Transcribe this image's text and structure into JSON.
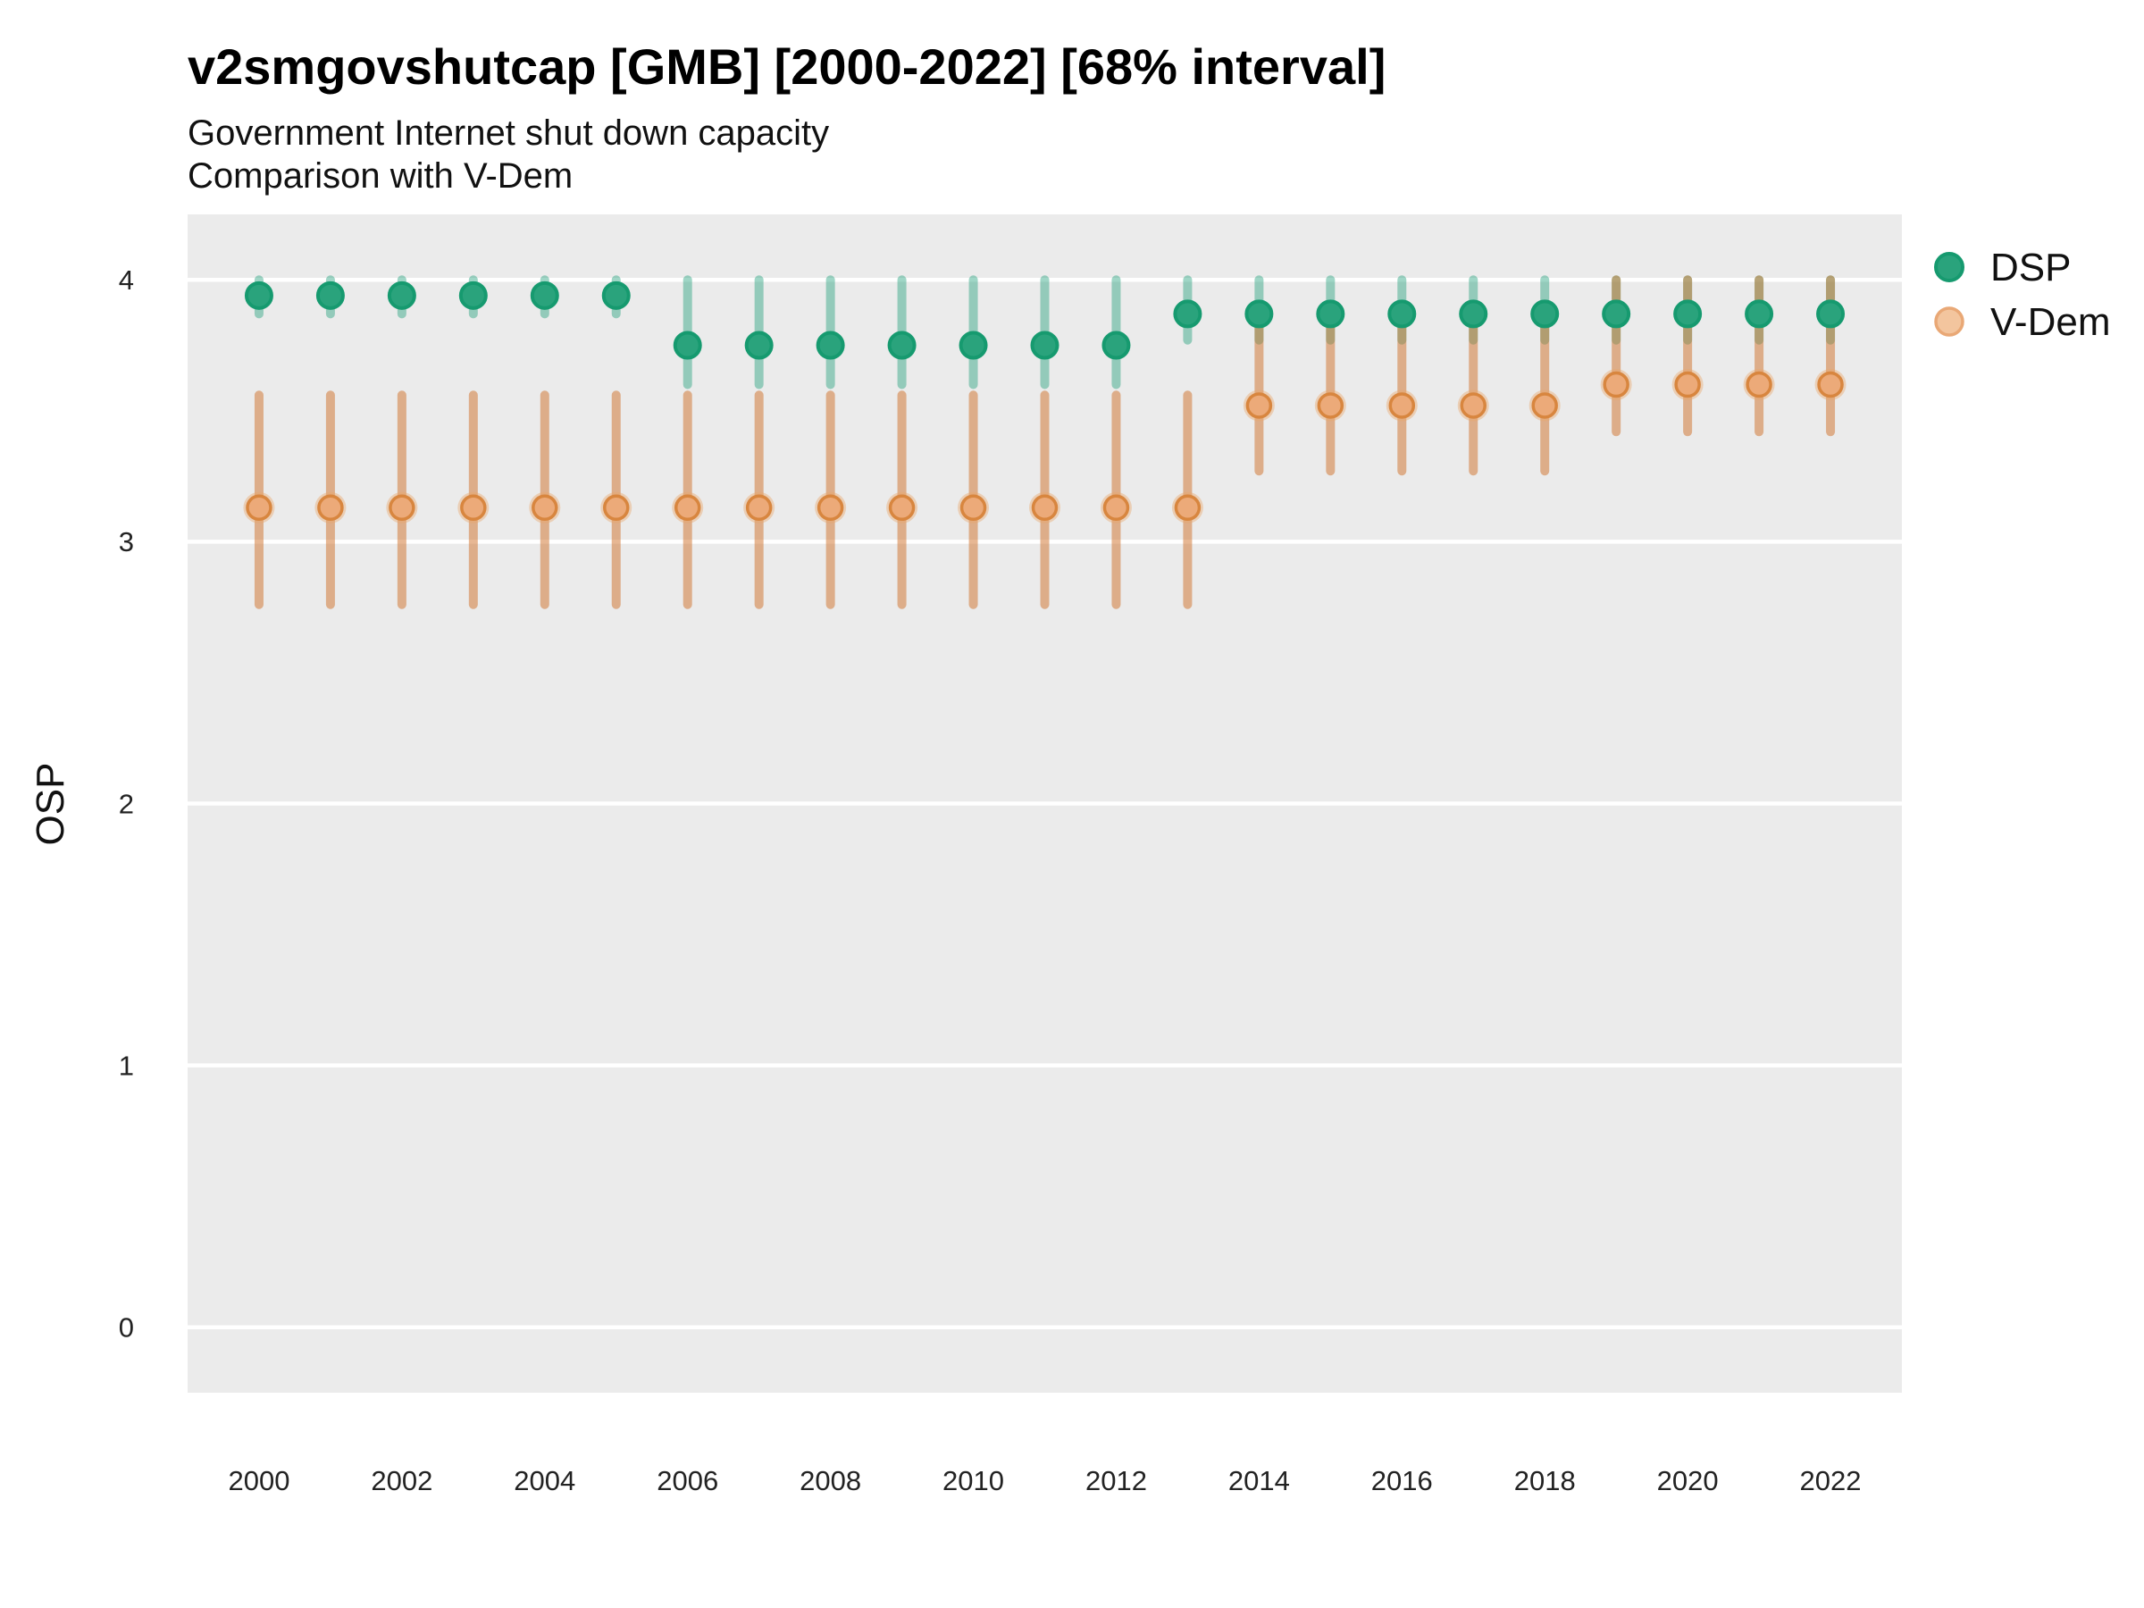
{
  "title": "v2smgovshutcap [GMB] [2000-2022] [68% interval]",
  "subtitle1": "Government Internet shut down capacity",
  "subtitle2": "Comparison with V-Dem",
  "ylabel": "OSP",
  "legend": {
    "entries": [
      {
        "label": "DSP",
        "swatch_fill": "#2aa37c",
        "swatch_stroke": "#169a6f"
      },
      {
        "label": "V-Dem",
        "swatch_fill": "#f3c59e",
        "swatch_stroke": "#e9a876"
      }
    ]
  },
  "colors": {
    "panel_background": "#ebebeb",
    "gridline": "#ffffff",
    "tick_label": "#222222",
    "dsp_point_fill": "#2aa37c",
    "dsp_point_stroke": "#169a6f",
    "dsp_interval": "rgba(27,158,119,0.42)",
    "vdem_point_fill": "#ecaa79",
    "vdem_point_stroke": "#d8863f",
    "vdem_halo": "rgba(233,167,107,0.42)",
    "vdem_interval": "rgba(207,111,40,0.5)"
  },
  "chart_data": {
    "type": "scatter",
    "subtype": "pointrange",
    "interval_level": "68%",
    "xlabel": "",
    "ylabel": "OSP",
    "xlim": [
      1999,
      2023
    ],
    "ylim": [
      -0.25,
      4.25
    ],
    "xticks": [
      2000,
      2002,
      2004,
      2006,
      2008,
      2010,
      2012,
      2014,
      2016,
      2018,
      2020,
      2022
    ],
    "yticks": [
      0,
      1,
      2,
      3,
      4
    ],
    "grid": "major-horizontal-only",
    "legend_position": "right-top",
    "series": [
      {
        "name": "DSP",
        "points": [
          {
            "x": 2000,
            "est": 3.94,
            "lo": 3.87,
            "hi": 4.0
          },
          {
            "x": 2001,
            "est": 3.94,
            "lo": 3.87,
            "hi": 4.0
          },
          {
            "x": 2002,
            "est": 3.94,
            "lo": 3.87,
            "hi": 4.0
          },
          {
            "x": 2003,
            "est": 3.94,
            "lo": 3.87,
            "hi": 4.0
          },
          {
            "x": 2004,
            "est": 3.94,
            "lo": 3.87,
            "hi": 4.0
          },
          {
            "x": 2005,
            "est": 3.94,
            "lo": 3.87,
            "hi": 4.0
          },
          {
            "x": 2006,
            "est": 3.75,
            "lo": 3.6,
            "hi": 4.0
          },
          {
            "x": 2007,
            "est": 3.75,
            "lo": 3.6,
            "hi": 4.0
          },
          {
            "x": 2008,
            "est": 3.75,
            "lo": 3.6,
            "hi": 4.0
          },
          {
            "x": 2009,
            "est": 3.75,
            "lo": 3.6,
            "hi": 4.0
          },
          {
            "x": 2010,
            "est": 3.75,
            "lo": 3.6,
            "hi": 4.0
          },
          {
            "x": 2011,
            "est": 3.75,
            "lo": 3.6,
            "hi": 4.0
          },
          {
            "x": 2012,
            "est": 3.75,
            "lo": 3.6,
            "hi": 4.0
          },
          {
            "x": 2013,
            "est": 3.87,
            "lo": 3.77,
            "hi": 4.0
          },
          {
            "x": 2014,
            "est": 3.87,
            "lo": 3.77,
            "hi": 4.0
          },
          {
            "x": 2015,
            "est": 3.87,
            "lo": 3.77,
            "hi": 4.0
          },
          {
            "x": 2016,
            "est": 3.87,
            "lo": 3.77,
            "hi": 4.0
          },
          {
            "x": 2017,
            "est": 3.87,
            "lo": 3.77,
            "hi": 4.0
          },
          {
            "x": 2018,
            "est": 3.87,
            "lo": 3.77,
            "hi": 4.0
          },
          {
            "x": 2019,
            "est": 3.87,
            "lo": 3.77,
            "hi": 4.0
          },
          {
            "x": 2020,
            "est": 3.87,
            "lo": 3.77,
            "hi": 4.0
          },
          {
            "x": 2021,
            "est": 3.87,
            "lo": 3.77,
            "hi": 4.0
          },
          {
            "x": 2022,
            "est": 3.87,
            "lo": 3.77,
            "hi": 4.0
          }
        ]
      },
      {
        "name": "V-Dem",
        "points": [
          {
            "x": 2000,
            "est": 3.13,
            "lo": 2.76,
            "hi": 3.56
          },
          {
            "x": 2001,
            "est": 3.13,
            "lo": 2.76,
            "hi": 3.56
          },
          {
            "x": 2002,
            "est": 3.13,
            "lo": 2.76,
            "hi": 3.56
          },
          {
            "x": 2003,
            "est": 3.13,
            "lo": 2.76,
            "hi": 3.56
          },
          {
            "x": 2004,
            "est": 3.13,
            "lo": 2.76,
            "hi": 3.56
          },
          {
            "x": 2005,
            "est": 3.13,
            "lo": 2.76,
            "hi": 3.56
          },
          {
            "x": 2006,
            "est": 3.13,
            "lo": 2.76,
            "hi": 3.56
          },
          {
            "x": 2007,
            "est": 3.13,
            "lo": 2.76,
            "hi": 3.56
          },
          {
            "x": 2008,
            "est": 3.13,
            "lo": 2.76,
            "hi": 3.56
          },
          {
            "x": 2009,
            "est": 3.13,
            "lo": 2.76,
            "hi": 3.56
          },
          {
            "x": 2010,
            "est": 3.13,
            "lo": 2.76,
            "hi": 3.56
          },
          {
            "x": 2011,
            "est": 3.13,
            "lo": 2.76,
            "hi": 3.56
          },
          {
            "x": 2012,
            "est": 3.13,
            "lo": 2.76,
            "hi": 3.56
          },
          {
            "x": 2013,
            "est": 3.13,
            "lo": 2.76,
            "hi": 3.56
          },
          {
            "x": 2014,
            "est": 3.52,
            "lo": 3.27,
            "hi": 3.85
          },
          {
            "x": 2015,
            "est": 3.52,
            "lo": 3.27,
            "hi": 3.85
          },
          {
            "x": 2016,
            "est": 3.52,
            "lo": 3.27,
            "hi": 3.85
          },
          {
            "x": 2017,
            "est": 3.52,
            "lo": 3.27,
            "hi": 3.85
          },
          {
            "x": 2018,
            "est": 3.52,
            "lo": 3.27,
            "hi": 3.85
          },
          {
            "x": 2019,
            "est": 3.6,
            "lo": 3.42,
            "hi": 4.0
          },
          {
            "x": 2020,
            "est": 3.6,
            "lo": 3.42,
            "hi": 4.0
          },
          {
            "x": 2021,
            "est": 3.6,
            "lo": 3.42,
            "hi": 4.0
          },
          {
            "x": 2022,
            "est": 3.6,
            "lo": 3.42,
            "hi": 4.0
          }
        ]
      }
    ]
  }
}
